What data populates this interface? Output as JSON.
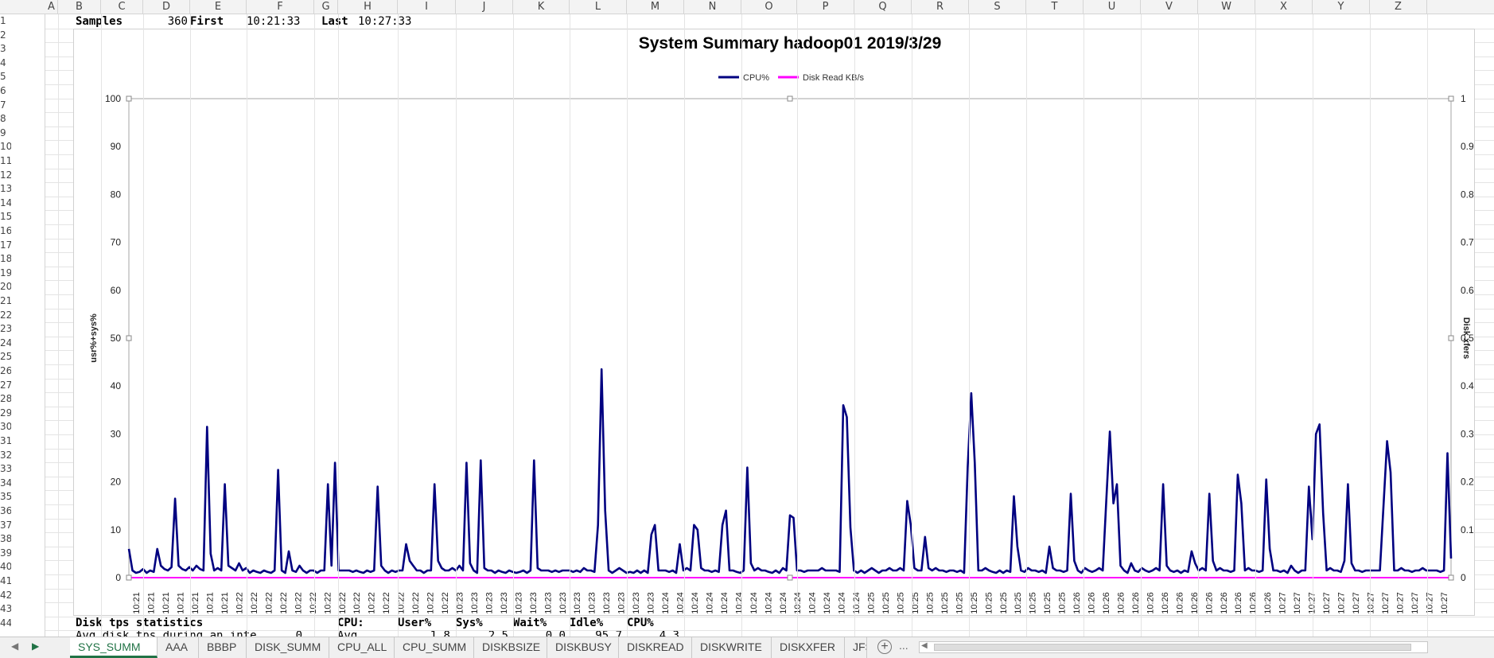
{
  "columns": [
    "A",
    "B",
    "C",
    "D",
    "E",
    "F",
    "G",
    "H",
    "I",
    "J",
    "K",
    "L",
    "M",
    "N",
    "O",
    "P",
    "Q",
    "R",
    "S",
    "T",
    "U",
    "V",
    "W",
    "X",
    "Y",
    "Z"
  ],
  "rows": [
    "1",
    "2",
    "3",
    "4",
    "5",
    "6",
    "7",
    "8",
    "9",
    "10",
    "11",
    "12",
    "13",
    "14",
    "15",
    "16",
    "17",
    "18",
    "19",
    "20",
    "21",
    "22",
    "23",
    "24",
    "25",
    "26",
    "27",
    "28",
    "29",
    "30",
    "31",
    "32",
    "33",
    "34",
    "35",
    "36",
    "37",
    "38",
    "39",
    "40",
    "41",
    "42",
    "43",
    "44"
  ],
  "row1": {
    "samples_label": "Samples",
    "samples_value": "360",
    "first_label": "First",
    "first_value": "10:21:33",
    "last_label": "Last",
    "last_value": "10:27:33"
  },
  "row43": {
    "disk_label": "Disk tps statistics",
    "cpu_label": "CPU:",
    "user_label": "User%",
    "sys_label": "Sys%",
    "wait_label": "Wait%",
    "idle_label": "Idle%",
    "cpupct_label": "CPU%"
  },
  "row44": {
    "disk_text": "Avg disk tps during an inte",
    "disk_value": "0",
    "cpu_text": "Avg",
    "user_value": "1.8",
    "sys_value": "2.5",
    "wait_value": "0.0",
    "idle_value": "95.7",
    "cpupct_value": "4.3"
  },
  "tabs": [
    "SYS_SUMM",
    "AAA",
    "BBBP",
    "DISK_SUMM",
    "CPU_ALL",
    "CPU_SUMM",
    "DISKBSIZE",
    "DISKBUSY",
    "DISKREAD",
    "DISKWRITE",
    "DISKXFER",
    "JFS"
  ],
  "active_tab": "SYS_SUMM",
  "tab_overflow": "...",
  "add_sheet_symbol": "+",
  "chart_data": {
    "type": "line",
    "title": "System Summary hadoop01  2019/3/29",
    "ylabel_left": "usr%+sys%",
    "ylabel_right": "Disk xfers",
    "ylim_left": [
      0,
      100
    ],
    "ylim_right": [
      0,
      1
    ],
    "yticks_left": [
      "0",
      "10",
      "20",
      "30",
      "40",
      "50",
      "60",
      "70",
      "80",
      "90",
      "100"
    ],
    "yticks_right": [
      "0",
      "0.1",
      "0.2",
      "0.3",
      "0.4",
      "0.5",
      "0.6",
      "0.7",
      "0.8",
      "0.9",
      "1"
    ],
    "legend_position": "top-center",
    "series": [
      {
        "name": "CPU%",
        "color": "#000080",
        "values": [
          6,
          1.5,
          1,
          1.2,
          1.8,
          1,
          1.5,
          1.2,
          6,
          2.5,
          1.8,
          1.5,
          2.2,
          16.5,
          2.5,
          1.8,
          1.5,
          2.2,
          1.5,
          2.5,
          1.8,
          1.5,
          31.5,
          5,
          1.5,
          2,
          1.5,
          19.5,
          2.5,
          2,
          1.5,
          3,
          1.5,
          2,
          1,
          1.5,
          1.2,
          1,
          1.5,
          1.2,
          1,
          1.5,
          22.5,
          1.5,
          1,
          5.5,
          1.5,
          1.2,
          2.5,
          1.5,
          1,
          1.5,
          1.5,
          1,
          1.5,
          1.5,
          19.5,
          2.5,
          24,
          1.5,
          1.5,
          1.5,
          1.5,
          1.2,
          1.5,
          1.2,
          1,
          1.5,
          1.2,
          1.5,
          19,
          2.5,
          1.5,
          1,
          1.5,
          1.2,
          1.5,
          1.5,
          7,
          3.5,
          2.5,
          1.5,
          1.5,
          1,
          1.5,
          1.5,
          19.5,
          3.5,
          2,
          1.5,
          1.5,
          2,
          1.5,
          2.5,
          1.5,
          24,
          3,
          1.5,
          1,
          24.5,
          2,
          1.5,
          1.5,
          1,
          1.5,
          1.2,
          1,
          1.5,
          1.2,
          1,
          1.2,
          1.5,
          1,
          1.5,
          24.5,
          2,
          1.5,
          1.5,
          1.5,
          1.2,
          1.5,
          1.2,
          1.5,
          1.5,
          1.5,
          1.2,
          1.5,
          1.2,
          2,
          1.5,
          1.5,
          1.2,
          11,
          43.5,
          14,
          1.5,
          1,
          1.5,
          2,
          1.5,
          1,
          1.2,
          1,
          1.5,
          1,
          1.5,
          1,
          9,
          11,
          1.5,
          1.5,
          1.5,
          1.2,
          1.5,
          1,
          7,
          1.5,
          2,
          1.5,
          11,
          10,
          2,
          1.5,
          1.5,
          1.2,
          1.5,
          1.2,
          11,
          14,
          1.5,
          1.5,
          1.2,
          1,
          1.5,
          23,
          3,
          1.5,
          2,
          1.5,
          1.5,
          1.2,
          1,
          1.5,
          1,
          2,
          1.5,
          13,
          12.5,
          1.5,
          1.5,
          1.2,
          1.5,
          1.5,
          1.5,
          1.5,
          2,
          1.5,
          1.5,
          1.5,
          1.5,
          1.2,
          36,
          33.5,
          10.5,
          1.5,
          1,
          1.5,
          1,
          1.5,
          2,
          1.5,
          1,
          1.5,
          1.5,
          2,
          1.5,
          1.5,
          2,
          1.5,
          16,
          11,
          2,
          1.5,
          1.5,
          8.5,
          2,
          1.5,
          2,
          1.5,
          1.5,
          1.2,
          1.5,
          1.5,
          1.2,
          1.5,
          1,
          23,
          38.5,
          24,
          1.5,
          1.5,
          2,
          1.5,
          1.2,
          1,
          1.5,
          1,
          1.5,
          1.2,
          17,
          6.5,
          1.5,
          1.2,
          2,
          1.5,
          1.5,
          1.2,
          1.5,
          1,
          6.5,
          2,
          1.5,
          1.5,
          1.2,
          1.5,
          17.5,
          3.5,
          1.5,
          1,
          2,
          1.5,
          1.2,
          1.5,
          2,
          1.5,
          16,
          30.5,
          15.5,
          19.5,
          2.5,
          1.5,
          1,
          3,
          1.5,
          1.2,
          2,
          1.5,
          1.2,
          1.5,
          2,
          1.5,
          19.5,
          2.5,
          1.5,
          1.2,
          1.5,
          1,
          1.5,
          1.2,
          5.5,
          3,
          1.5,
          2,
          1.5,
          17.5,
          3.5,
          1.5,
          2,
          1.5,
          1.5,
          1.2,
          1.5,
          21.5,
          15.5,
          1.5,
          2,
          1.5,
          1.5,
          1.2,
          1.5,
          20.5,
          6,
          1.5,
          1.5,
          1.2,
          1.5,
          1,
          2.5,
          1.5,
          1,
          1.5,
          1.5,
          19,
          8,
          30,
          32,
          13.5,
          1.5,
          2,
          1.5,
          1.5,
          1.2,
          3.5,
          19.5,
          3,
          1.5,
          1.5,
          1.2,
          1.5,
          1.5,
          1.5,
          1.5,
          1.5,
          15,
          28.5,
          22,
          1.5,
          1.5,
          2,
          1.5,
          1.5,
          1.2,
          1.5,
          1.5,
          2,
          1.5,
          1.5,
          1.5,
          1.5,
          1.2,
          1.5,
          26,
          4
        ]
      },
      {
        "name": "Disk Read KB/s",
        "color": "#ff00ff",
        "values": [
          0,
          0
        ]
      }
    ],
    "x_tick_labels": [
      "10:21",
      "10:21",
      "10:21",
      "10:21",
      "10:21",
      "10:21",
      "10:21",
      "10:22",
      "10:22",
      "10:22",
      "10:22",
      "10:22",
      "10:22",
      "10:22",
      "10:22",
      "10:22",
      "10:22",
      "10:22",
      "10:22",
      "10:22",
      "10:22",
      "10:22",
      "10:23",
      "10:23",
      "10:23",
      "10:23",
      "10:23",
      "10:23",
      "10:23",
      "10:23",
      "10:23",
      "10:23",
      "10:23",
      "10:23",
      "10:23",
      "10:23",
      "10:24",
      "10:24",
      "10:24",
      "10:24",
      "10:24",
      "10:24",
      "10:24",
      "10:24",
      "10:24",
      "10:24",
      "10:24",
      "10:24",
      "10:24",
      "10:24",
      "10:25",
      "10:25",
      "10:25",
      "10:25",
      "10:25",
      "10:25",
      "10:25",
      "10:25",
      "10:25",
      "10:25",
      "10:25",
      "10:25",
      "10:25",
      "10:25",
      "10:26",
      "10:26",
      "10:26",
      "10:26",
      "10:26",
      "10:26",
      "10:26",
      "10:26",
      "10:26",
      "10:26",
      "10:26",
      "10:26",
      "10:26",
      "10:26",
      "10:27",
      "10:27",
      "10:27",
      "10:27",
      "10:27",
      "10:27",
      "10:27",
      "10:27",
      "10:27",
      "10:27",
      "10:27",
      "10:27"
    ]
  }
}
